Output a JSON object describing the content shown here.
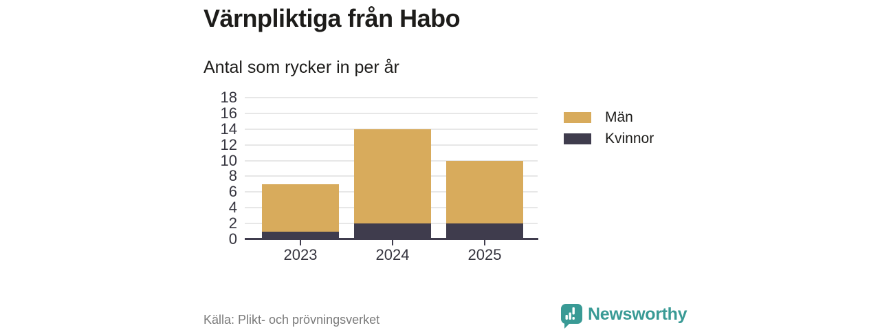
{
  "chart_data": {
    "type": "bar",
    "stacked": true,
    "title": "Värnpliktiga från Habo",
    "subtitle": "Antal som rycker in per år",
    "categories": [
      "2023",
      "2024",
      "2025"
    ],
    "series": [
      {
        "name": "Kvinnor",
        "color": "#3f3c4d",
        "values": [
          1,
          2,
          2
        ]
      },
      {
        "name": "Män",
        "color": "#d8ab5c",
        "values": [
          6,
          12,
          8
        ]
      }
    ],
    "totals": [
      7,
      14,
      10
    ],
    "xlabel": "",
    "ylabel": "",
    "ylim": [
      0,
      18
    ],
    "yticks": [
      0,
      2,
      4,
      6,
      8,
      10,
      12,
      14,
      16,
      18
    ],
    "grid": true,
    "legend_position": "right",
    "legend_order": [
      "Män",
      "Kvinnor"
    ]
  },
  "footer": {
    "source": "Källa: Plikt- och prövningsverket",
    "brand": "Newsworthy"
  },
  "colors": {
    "men_bar": "#d8ab5c",
    "women_bar": "#3f3c4d",
    "axis_line": "#3f3c4d",
    "gridline": "#e7e7e7",
    "title_text": "#1d1c1a",
    "tick_text": "#35343e",
    "source_text": "#7a7a7a",
    "brand_teal": "#399a95",
    "background": "#ffffff"
  },
  "icons": {
    "brand_logo": "bar-chart-speech-bubble-icon"
  }
}
